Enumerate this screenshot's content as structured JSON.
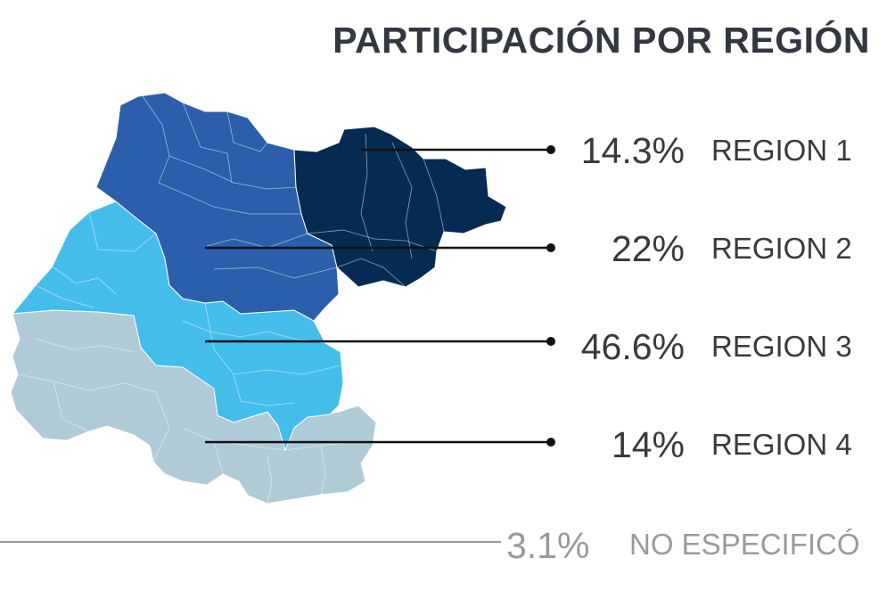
{
  "title": "PARTICIPACIÓN POR REGIÓN",
  "colors": {
    "region_1": "#062b52",
    "region_2": "#2b5fab",
    "region_3": "#45bdea",
    "region_4": "#aecbd6",
    "leader_line": "#111111",
    "no_especifico_line": "#9a9a9a",
    "text": "#3a3a3c",
    "muted_text": "#9a9a9a"
  },
  "regions": [
    {
      "percent": "14.3%",
      "label": "REGION 1"
    },
    {
      "percent": "22%",
      "label": "REGION 2"
    },
    {
      "percent": "46.6%",
      "label": "REGION 3"
    },
    {
      "percent": "14%",
      "label": "REGION 4"
    }
  ],
  "no_especifico": {
    "percent": "3.1%",
    "label": "NO ESPECIFICÓ"
  }
}
